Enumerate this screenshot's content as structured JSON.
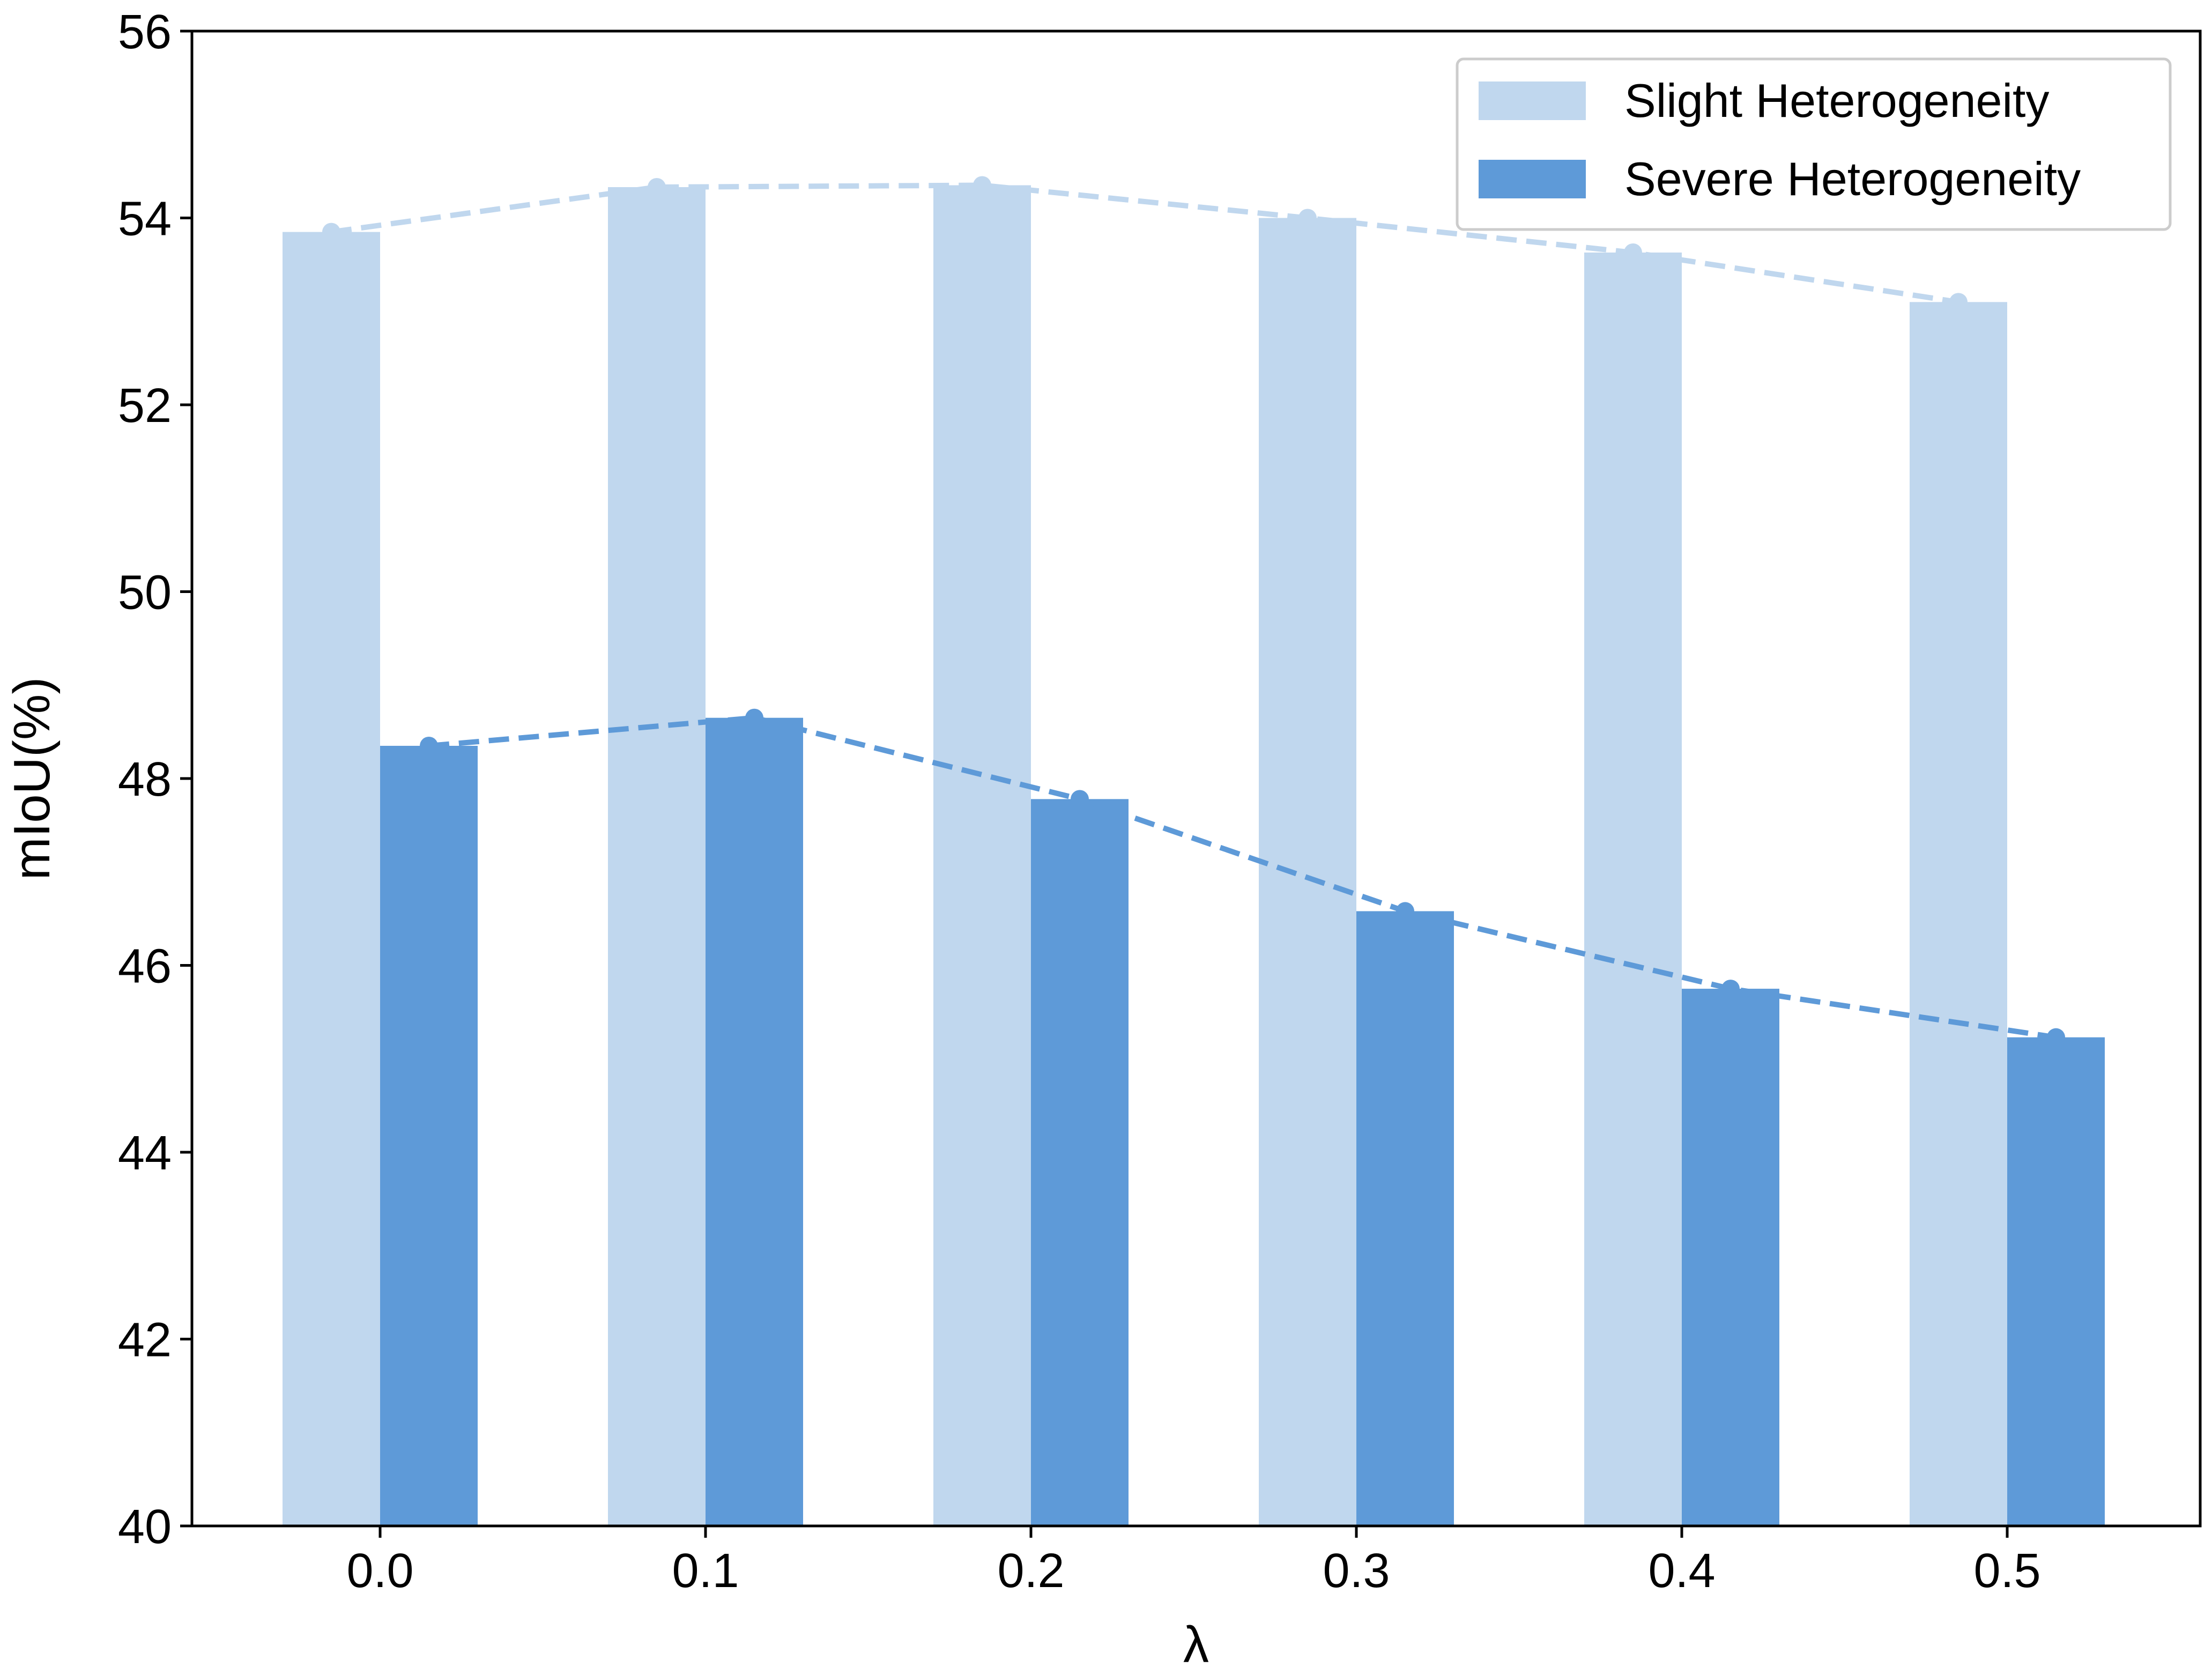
{
  "chart_data": {
    "type": "bar",
    "title": "",
    "xlabel": "λ",
    "ylabel": "mIoU(%)",
    "categories": [
      "0.0",
      "0.1",
      "0.2",
      "0.3",
      "0.4",
      "0.5"
    ],
    "ylim": [
      40,
      56
    ],
    "yticks": [
      "40",
      "42",
      "44",
      "46",
      "48",
      "50",
      "52",
      "54",
      "56"
    ],
    "grid": false,
    "legend_position": "top-right",
    "series": [
      {
        "name": "Slight Heterogeneity",
        "color": "#c0d7ee",
        "values": [
          53.85,
          54.33,
          54.35,
          54.0,
          53.63,
          53.1
        ],
        "line_style": "dashed",
        "markers": "dot"
      },
      {
        "name": "Severe Heterogeneity",
        "color": "#5e9ad8",
        "values": [
          48.35,
          48.65,
          47.78,
          46.58,
          45.75,
          45.23
        ],
        "line_style": "dashed",
        "markers": "dot"
      }
    ]
  }
}
